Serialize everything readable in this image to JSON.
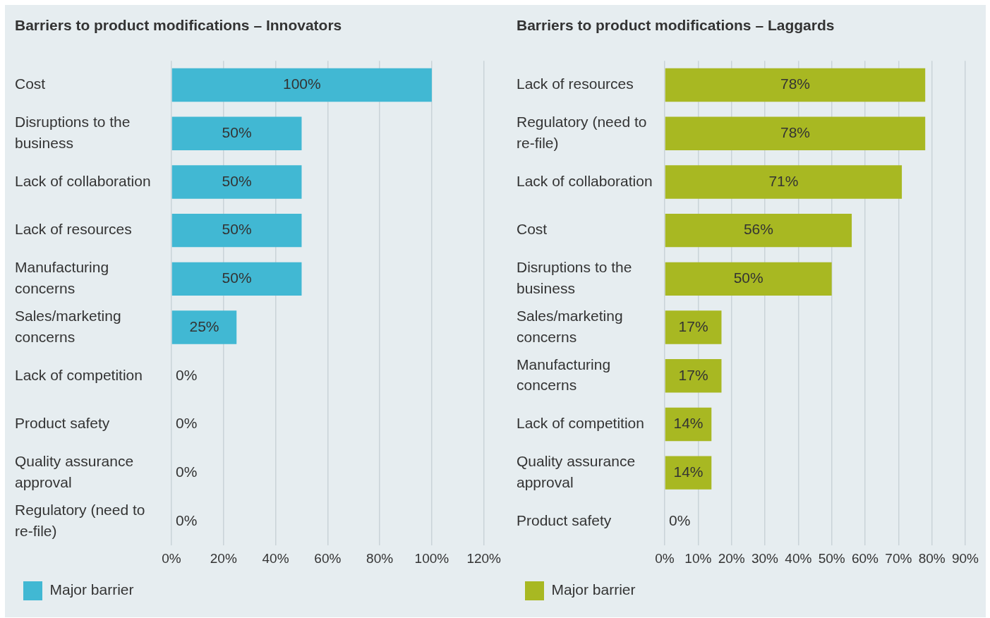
{
  "chart_data": [
    {
      "type": "bar",
      "orientation": "horizontal",
      "title": "Barriers to product modifications – Innovators",
      "categories": [
        "Cost",
        "Disruptions to the business",
        "Lack of collaboration",
        "Lack of resources",
        "Manufacturing concerns",
        "Sales/marketing concerns",
        "Lack of competition",
        "Product safety",
        "Quality assurance approval",
        "Regulatory (need to re-file)"
      ],
      "series": [
        {
          "name": "Major barrier",
          "color": "#41b8d3",
          "values": [
            100,
            50,
            50,
            50,
            50,
            25,
            0,
            0,
            0,
            0
          ],
          "value_labels": [
            "100%",
            "50%",
            "50%",
            "50%",
            "50%",
            "25%",
            "0%",
            "0%",
            "0%",
            "0%"
          ]
        }
      ],
      "xlim": [
        0,
        120
      ],
      "xticks": [
        {
          "value": 0,
          "label": "0%"
        },
        {
          "value": 20,
          "label": "20%"
        },
        {
          "value": 40,
          "label": "40%"
        },
        {
          "value": 60,
          "label": "60%"
        },
        {
          "value": 80,
          "label": "80%"
        },
        {
          "value": 100,
          "label": "100%"
        },
        {
          "value": 120,
          "label": "120%"
        }
      ],
      "grid": "x",
      "legend": "bottom left"
    },
    {
      "type": "bar",
      "orientation": "horizontal",
      "title": "Barriers to product modifications – Laggards",
      "categories": [
        "Lack of resources",
        "Regulatory (need to re-file)",
        "Lack of collaboration",
        "Cost",
        "Disruptions to the business",
        "Sales/marketing concerns",
        "Manufacturing concerns",
        "Lack of competition",
        "Quality assurance approval",
        "Product safety"
      ],
      "series": [
        {
          "name": "Major barrier",
          "color": "#a8b822",
          "values": [
            78,
            78,
            71,
            56,
            50,
            17,
            17,
            14,
            14,
            0
          ],
          "value_labels": [
            "78%",
            "78%",
            "71%",
            "56%",
            "50%",
            "17%",
            "17%",
            "14%",
            "14%",
            "0%"
          ]
        }
      ],
      "xlim": [
        0,
        90
      ],
      "xticks": [
        {
          "value": 0,
          "label": "0%"
        },
        {
          "value": 10,
          "label": "10%"
        },
        {
          "value": 20,
          "label": "20%"
        },
        {
          "value": 30,
          "label": "30%"
        },
        {
          "value": 40,
          "label": "40%"
        },
        {
          "value": 50,
          "label": "50%"
        },
        {
          "value": 60,
          "label": "60%"
        },
        {
          "value": 70,
          "label": "70%"
        },
        {
          "value": 80,
          "label": "80%"
        },
        {
          "value": 90,
          "label": "90%"
        }
      ],
      "grid": "x",
      "legend": "bottom left"
    }
  ]
}
